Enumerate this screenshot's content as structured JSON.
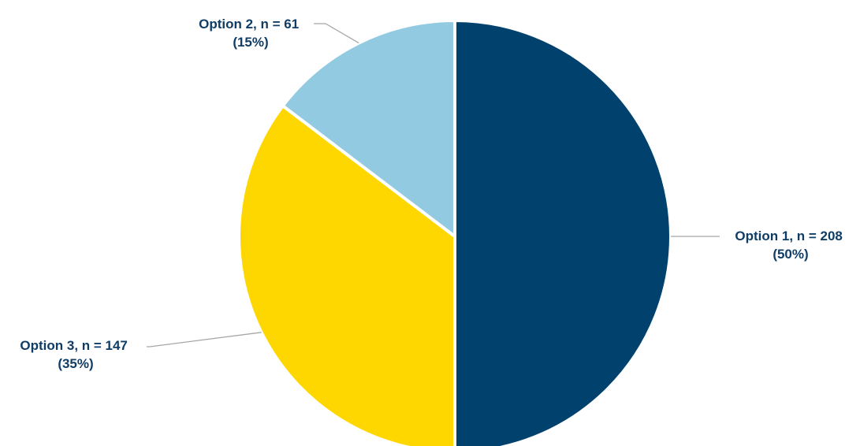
{
  "chart_data": {
    "type": "pie",
    "slices": [
      {
        "category": "Option 1",
        "n": 208,
        "percent": 50,
        "label_line1": "Option 1, n = 208",
        "label_line2": "(50%)",
        "color": "#00416e"
      },
      {
        "category": "Option 3",
        "n": 147,
        "percent": 35,
        "label_line1": "Option 3, n = 147",
        "label_line2": "(35%)",
        "color": "#ffd700"
      },
      {
        "category": "Option 2",
        "n": 61,
        "percent": 15,
        "label_line1": "Option 2, n = 61",
        "label_line2": "(15%)",
        "color": "#92cae2"
      }
    ],
    "start_angle": "12 o'clock",
    "direction": "clockwise",
    "legend": "none",
    "label_color": "#0f3d66",
    "leader_line_color": "#a6a6a6"
  }
}
